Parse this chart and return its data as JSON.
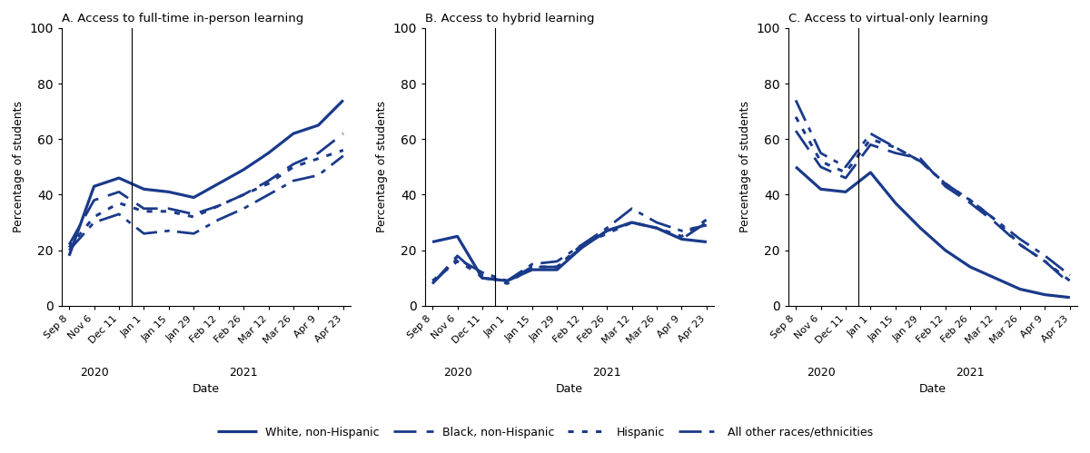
{
  "title_A": "A. Access to full-time in-person learning",
  "title_B": "B. Access to hybrid learning",
  "title_C": "C. Access to virtual-only learning",
  "ylabel": "Percentage of students",
  "xlabel": "Date",
  "ylim": [
    0,
    100
  ],
  "yticks": [
    0,
    20,
    40,
    60,
    80,
    100
  ],
  "x_labels": [
    "Sep 8",
    "Nov 6",
    "Dec 11",
    "Jan 1",
    "Jan 15",
    "Jan 29",
    "Feb 12",
    "Feb 26",
    "Mar 12",
    "Mar 26",
    "Apr 9",
    "Apr 23"
  ],
  "color": "#1a3a8a",
  "year_split_index": 2.5,
  "panel_A": {
    "white": [
      18,
      43,
      46,
      42,
      41,
      39,
      44,
      49,
      55,
      62,
      65,
      74
    ],
    "black": [
      22,
      38,
      41,
      35,
      35,
      33,
      36,
      40,
      45,
      51,
      55,
      62
    ],
    "hispanic": [
      21,
      32,
      37,
      34,
      34,
      32,
      36,
      40,
      44,
      50,
      53,
      56
    ],
    "other": [
      20,
      30,
      33,
      26,
      27,
      26,
      31,
      35,
      40,
      45,
      47,
      54
    ]
  },
  "panel_B": {
    "white": [
      23,
      25,
      10,
      9,
      13,
      13,
      21,
      27,
      30,
      28,
      24,
      23
    ],
    "black": [
      8,
      18,
      10,
      9,
      14,
      14,
      21,
      27,
      30,
      28,
      24,
      30
    ],
    "hispanic": [
      9,
      16,
      11,
      8,
      14,
      14,
      22,
      26,
      30,
      28,
      25,
      31
    ],
    "other": [
      8,
      17,
      12,
      9,
      15,
      16,
      22,
      28,
      35,
      30,
      27,
      29
    ]
  },
  "panel_C": {
    "white": [
      50,
      42,
      41,
      48,
      37,
      28,
      20,
      14,
      10,
      6,
      4,
      3
    ],
    "black": [
      63,
      50,
      46,
      58,
      55,
      53,
      43,
      37,
      30,
      22,
      16,
      8
    ],
    "hispanic": [
      68,
      52,
      48,
      60,
      57,
      52,
      44,
      38,
      31,
      22,
      16,
      9
    ],
    "other": [
      74,
      55,
      50,
      62,
      57,
      52,
      44,
      38,
      31,
      24,
      18,
      11
    ]
  },
  "legend_labels": [
    "White, non-Hispanic",
    "Black, non-Hispanic",
    "Hispanic",
    "All other races/ethnicities"
  ]
}
